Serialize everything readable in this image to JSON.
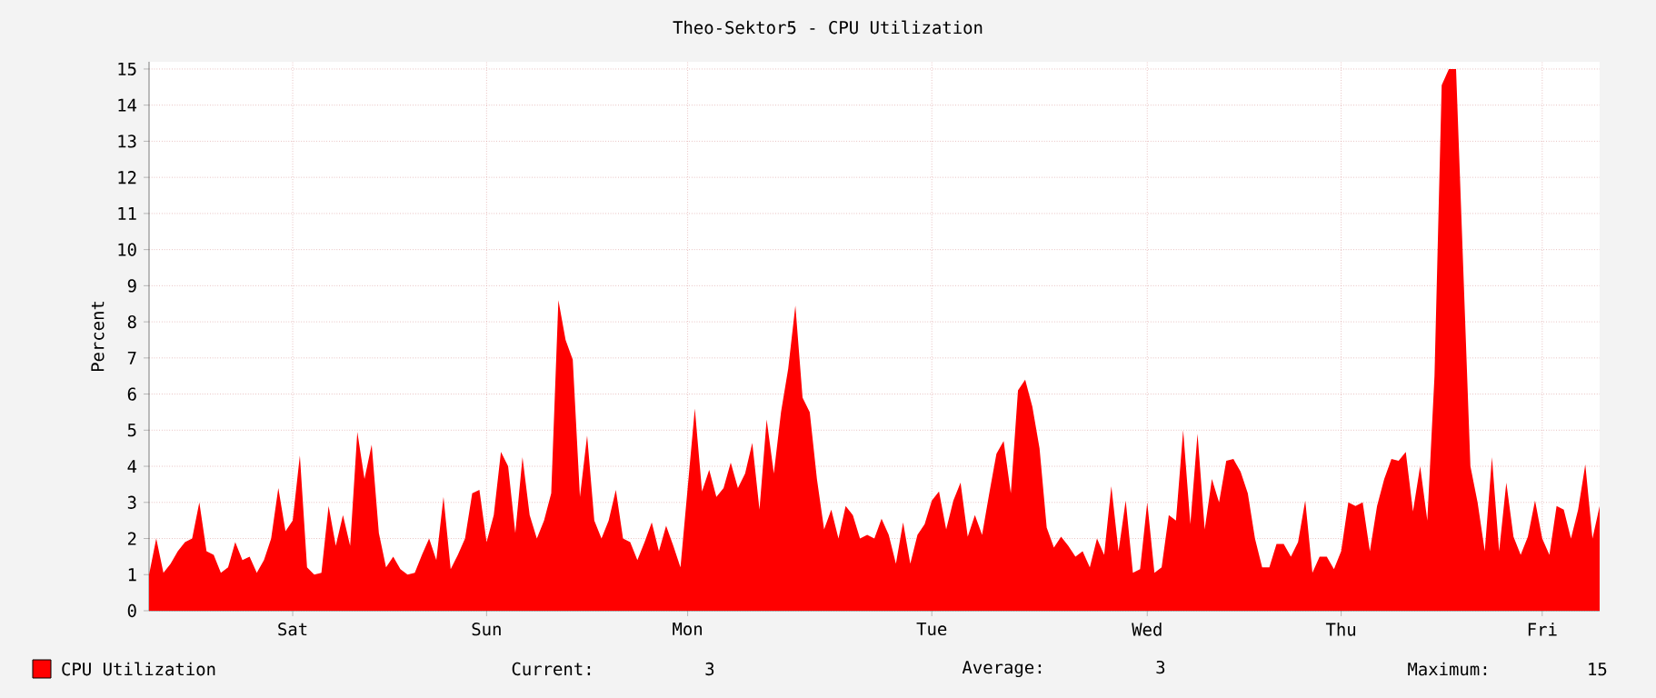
{
  "chart_data": {
    "type": "area",
    "title": "Theo-Sektor5 - CPU Utilization",
    "ylabel": "Percent",
    "categories": [
      null,
      null,
      null,
      null,
      null,
      null,
      null,
      null,
      null,
      null,
      null,
      null,
      null,
      null,
      null,
      null,
      null,
      null,
      null,
      null,
      "Sat",
      null,
      null,
      null,
      null,
      null,
      null,
      null,
      null,
      null,
      null,
      null,
      null,
      null,
      null,
      null,
      null,
      null,
      null,
      null,
      null,
      null,
      null,
      null,
      null,
      null,
      null,
      "Sun",
      null,
      null,
      null,
      null,
      null,
      null,
      null,
      null,
      null,
      null,
      null,
      null,
      null,
      null,
      null,
      null,
      null,
      null,
      null,
      null,
      null,
      null,
      null,
      null,
      null,
      null,
      null,
      "Mon",
      null,
      null,
      null,
      null,
      null,
      null,
      null,
      null,
      null,
      null,
      null,
      null,
      null,
      null,
      null,
      null,
      null,
      null,
      null,
      null,
      null,
      null,
      null,
      null,
      null,
      null,
      null,
      null,
      null,
      null,
      null,
      null,
      null,
      "Tue",
      null,
      null,
      null,
      null,
      null,
      null,
      null,
      null,
      null,
      null,
      null,
      null,
      null,
      null,
      null,
      null,
      null,
      null,
      null,
      null,
      null,
      null,
      null,
      null,
      null,
      null,
      null,
      null,
      null,
      "Wed",
      null,
      null,
      null,
      null,
      null,
      null,
      null,
      null,
      null,
      null,
      null,
      null,
      null,
      null,
      null,
      null,
      null,
      null,
      null,
      null,
      null,
      null,
      null,
      null,
      null,
      null,
      "Thu",
      null,
      null,
      null,
      null,
      null,
      null,
      null,
      null,
      null,
      null,
      null,
      null,
      null,
      null,
      null,
      null,
      null,
      null,
      null,
      null,
      null,
      null,
      null,
      null,
      null,
      null,
      null,
      "Fri",
      null,
      null,
      null,
      null,
      null,
      null,
      null,
      null
    ],
    "series": [
      {
        "name": "CPU Utilization",
        "color": "#ff0000",
        "values": [
          1.0,
          2.0,
          1.05,
          1.3,
          1.65,
          1.9,
          2.0,
          3.0,
          1.65,
          1.55,
          1.05,
          1.2,
          1.9,
          1.4,
          1.5,
          1.05,
          1.4,
          2.0,
          3.4,
          2.2,
          2.5,
          4.3,
          1.2,
          1.0,
          1.05,
          2.9,
          1.8,
          2.65,
          1.8,
          4.95,
          3.65,
          4.6,
          2.15,
          1.2,
          1.5,
          1.15,
          1.0,
          1.05,
          1.55,
          2.0,
          1.4,
          3.15,
          1.15,
          1.55,
          2.0,
          3.25,
          3.35,
          1.9,
          2.65,
          4.4,
          4.0,
          2.15,
          4.25,
          2.65,
          2.0,
          2.5,
          3.25,
          8.6,
          7.5,
          6.95,
          3.15,
          4.85,
          2.5,
          2.0,
          2.5,
          3.35,
          2.0,
          1.9,
          1.4,
          1.9,
          2.45,
          1.65,
          2.35,
          1.8,
          1.2,
          3.4,
          5.6,
          3.3,
          3.9,
          3.15,
          3.4,
          4.1,
          3.4,
          3.8,
          4.65,
          2.8,
          5.3,
          3.8,
          5.5,
          6.7,
          8.45,
          5.9,
          5.5,
          3.65,
          2.25,
          2.8,
          2.0,
          2.9,
          2.65,
          2.0,
          2.1,
          2.0,
          2.55,
          2.1,
          1.3,
          2.45,
          1.3,
          2.1,
          2.4,
          3.05,
          3.3,
          2.25,
          3.05,
          3.55,
          2.05,
          2.65,
          2.1,
          3.25,
          4.35,
          4.7,
          3.25,
          6.1,
          6.4,
          5.65,
          4.5,
          2.3,
          1.75,
          2.05,
          1.8,
          1.5,
          1.65,
          1.2,
          2.0,
          1.55,
          3.45,
          1.65,
          3.05,
          1.05,
          1.15,
          3.0,
          1.05,
          1.2,
          2.65,
          2.5,
          5.0,
          2.4,
          4.9,
          2.25,
          3.65,
          3.0,
          4.15,
          4.2,
          3.85,
          3.25,
          2.0,
          1.2,
          1.2,
          1.85,
          1.85,
          1.5,
          1.9,
          3.05,
          1.05,
          1.5,
          1.5,
          1.15,
          1.65,
          3.0,
          2.9,
          3.0,
          1.65,
          2.9,
          3.65,
          4.2,
          4.15,
          4.4,
          2.75,
          4.0,
          2.5,
          6.5,
          14.55,
          15.0,
          15.0,
          9.5,
          4.0,
          3.0,
          1.65,
          4.25,
          1.65,
          3.55,
          2.05,
          1.55,
          2.05,
          3.05,
          2.0,
          1.55,
          2.9,
          2.8,
          2.0,
          2.8,
          4.05,
          2.0,
          2.9
        ]
      }
    ],
    "ylim": [
      0,
      15.2
    ],
    "yticks": [
      0,
      1,
      2,
      3,
      4,
      5,
      6,
      7,
      8,
      9,
      10,
      11,
      12,
      13,
      14,
      15
    ],
    "grid": true,
    "legend": "bottom left",
    "annotations": [
      "Current:        3",
      "Average:        3",
      "Maximum:       15"
    ]
  }
}
